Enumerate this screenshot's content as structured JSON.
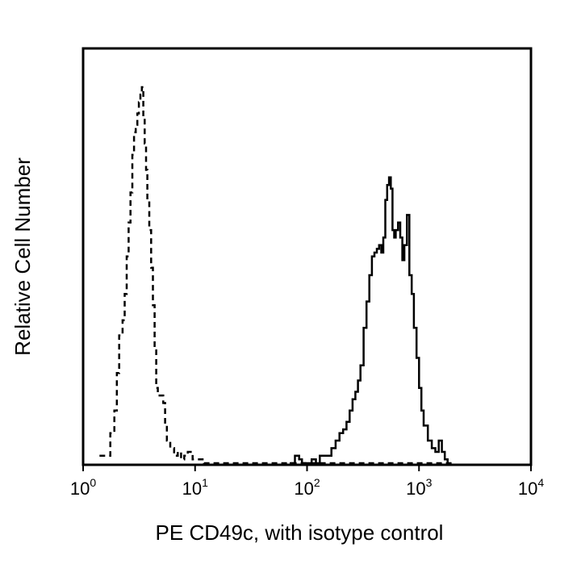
{
  "chart_data": {
    "type": "line",
    "title": "",
    "xlabel": "PE CD49c, with isotype control",
    "ylabel": "Relative Cell Number",
    "x_scale": "log",
    "xlim": [
      1,
      10000
    ],
    "ylim": [
      0,
      1
    ],
    "grid": false,
    "legend": "none",
    "x_ticks": [
      {
        "value": 1,
        "base": "10",
        "exp": "0"
      },
      {
        "value": 10,
        "base": "10",
        "exp": "1"
      },
      {
        "value": 100,
        "base": "10",
        "exp": "2"
      },
      {
        "value": 1000,
        "base": "10",
        "exp": "3"
      },
      {
        "value": 10000,
        "base": "10",
        "exp": "4"
      }
    ],
    "series": [
      {
        "style": "dashed",
        "color": "#000000",
        "x": [
          1.4,
          1.55,
          1.75,
          1.9,
          2.0,
          2.1,
          2.25,
          2.35,
          2.45,
          2.55,
          2.65,
          2.75,
          2.85,
          2.95,
          3.05,
          3.15,
          3.25,
          3.35,
          3.45,
          3.55,
          3.65,
          3.75,
          3.9,
          4.05,
          4.2,
          4.35,
          4.5,
          4.65,
          4.8,
          5.0,
          5.2,
          5.4,
          5.6,
          6.0,
          6.5,
          7.0,
          7.5,
          8.0,
          8.6,
          9.5,
          10.5,
          12,
          20,
          60,
          200,
          1000,
          2000
        ],
        "y": [
          0.02,
          0.02,
          0.08,
          0.14,
          0.24,
          0.34,
          0.38,
          0.45,
          0.55,
          0.64,
          0.72,
          0.82,
          0.88,
          0.9,
          0.93,
          0.96,
          0.98,
          1.0,
          0.92,
          0.85,
          0.78,
          0.7,
          0.62,
          0.52,
          0.42,
          0.3,
          0.2,
          0.18,
          0.18,
          0.18,
          0.16,
          0.1,
          0.06,
          0.04,
          0.02,
          0.03,
          0.01,
          0.02,
          0.03,
          0.01,
          0.01,
          0.0,
          0.0,
          0.0,
          0.0,
          0.0,
          0.0
        ]
      },
      {
        "style": "solid",
        "color": "#000000",
        "x": [
          70,
          78,
          85,
          90,
          110,
          120,
          130,
          150,
          165,
          180,
          195,
          210,
          225,
          240,
          255,
          270,
          285,
          300,
          320,
          340,
          360,
          380,
          400,
          420,
          440,
          460,
          480,
          500,
          520,
          540,
          560,
          580,
          600,
          620,
          650,
          680,
          710,
          740,
          780,
          820,
          860,
          900,
          950,
          1000,
          1050,
          1100,
          1200,
          1300,
          1400,
          1500,
          1600,
          1700,
          1800
        ],
        "y": [
          0.0,
          0.02,
          0.01,
          0.0,
          0.01,
          0.0,
          0.02,
          0.02,
          0.04,
          0.06,
          0.08,
          0.09,
          0.11,
          0.14,
          0.17,
          0.19,
          0.22,
          0.26,
          0.36,
          0.43,
          0.5,
          0.55,
          0.56,
          0.57,
          0.58,
          0.56,
          0.6,
          0.7,
          0.74,
          0.76,
          0.73,
          0.62,
          0.6,
          0.62,
          0.64,
          0.6,
          0.54,
          0.58,
          0.66,
          0.5,
          0.45,
          0.36,
          0.28,
          0.2,
          0.14,
          0.1,
          0.06,
          0.04,
          0.03,
          0.06,
          0.03,
          0.01,
          0.0
        ]
      }
    ]
  }
}
